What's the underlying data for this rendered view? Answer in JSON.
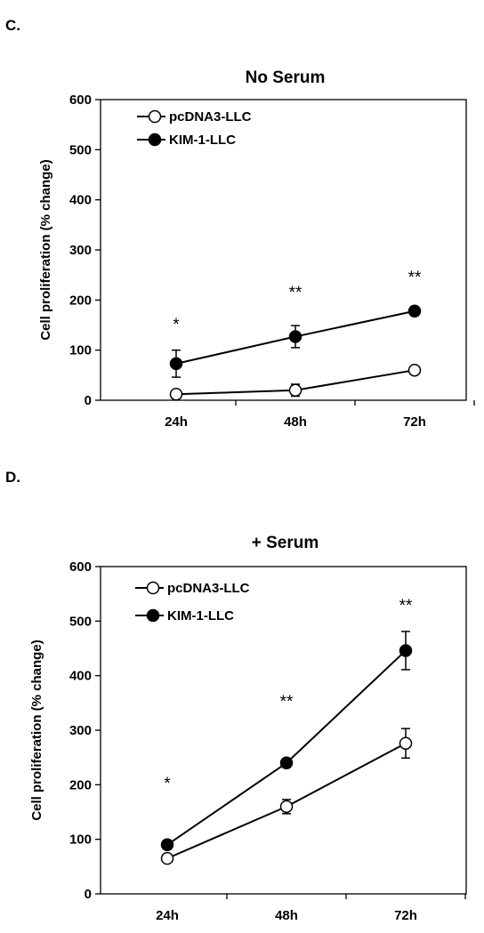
{
  "chart_data": [
    {
      "type": "line",
      "panel_label": "C.",
      "title": "No Serum",
      "ylabel": "Cell proliferation (% change)",
      "xlabel": "",
      "categories": [
        "24h",
        "48h",
        "72h"
      ],
      "ylim": [
        0,
        600
      ],
      "yticks": [
        0,
        100,
        200,
        300,
        400,
        500,
        600
      ],
      "legend_position": "top-left",
      "series": [
        {
          "name": "pcDNA3-LLC",
          "marker": "open-circle",
          "values": [
            12,
            20,
            60
          ],
          "errors": [
            5,
            12,
            5
          ]
        },
        {
          "name": "KIM-1-LLC",
          "marker": "filled-circle",
          "values": [
            73,
            127,
            178
          ],
          "errors": [
            27,
            22,
            9
          ]
        }
      ],
      "annotations": [
        "*",
        "**",
        "**"
      ]
    },
    {
      "type": "line",
      "panel_label": "D.",
      "title": "+ Serum",
      "ylabel": "Cell proliferation (% change)",
      "xlabel": "",
      "categories": [
        "24h",
        "48h",
        "72h"
      ],
      "ylim": [
        0,
        600
      ],
      "yticks": [
        0,
        100,
        200,
        300,
        400,
        500,
        600
      ],
      "legend_position": "top-left",
      "series": [
        {
          "name": "pcDNA3-LLC",
          "marker": "open-circle",
          "values": [
            65,
            160,
            276
          ],
          "errors": [
            5,
            13,
            27
          ]
        },
        {
          "name": "KIM-1-LLC",
          "marker": "filled-circle",
          "values": [
            90,
            240,
            446
          ],
          "errors": [
            8,
            8,
            35
          ]
        }
      ],
      "annotations": [
        "*",
        "**",
        "**"
      ]
    }
  ]
}
